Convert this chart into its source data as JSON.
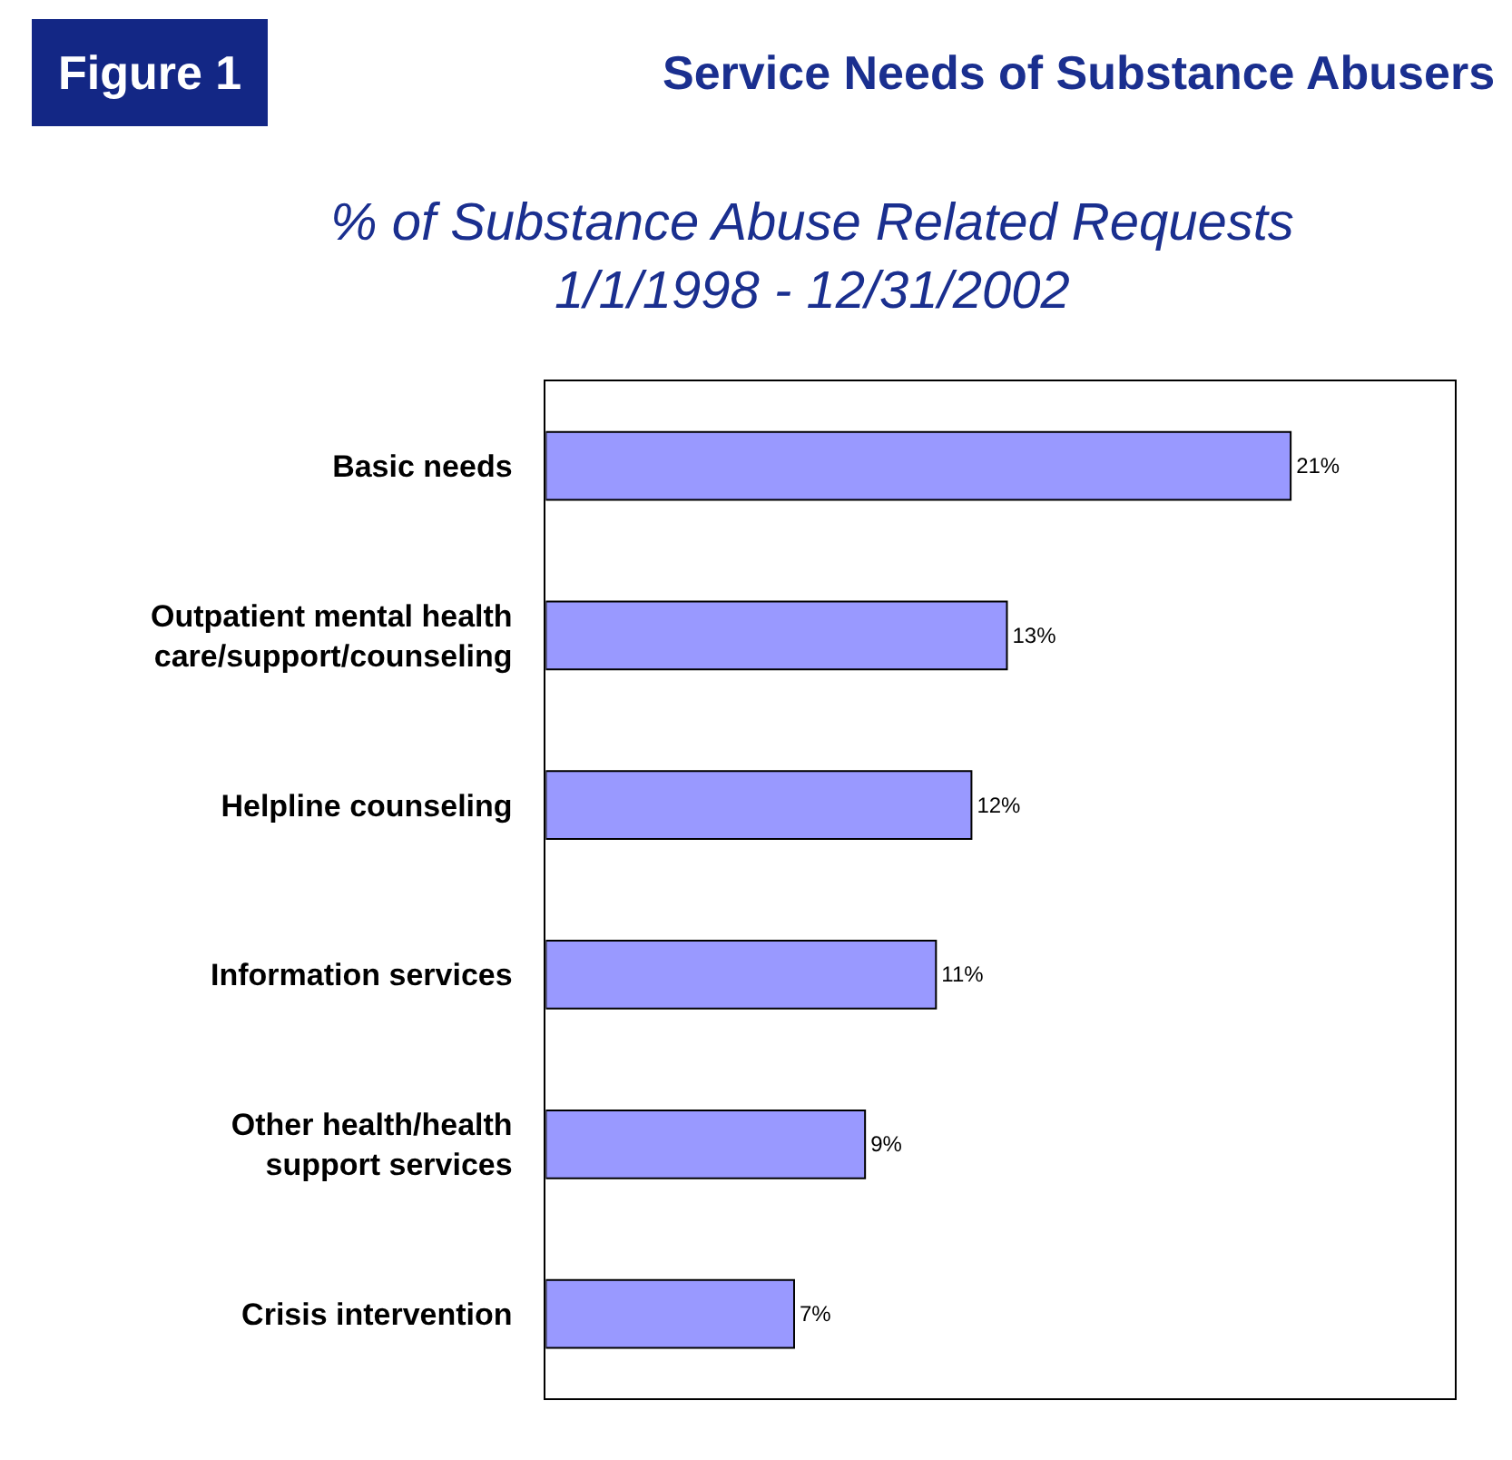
{
  "chart_data": {
    "type": "bar",
    "orientation": "horizontal",
    "title": "Service Needs of Substance Abusers",
    "subtitle": "% of Substance Abuse Related Requests\n1/1/1998 - 12/31/2002",
    "annotations": [
      "Figure 1"
    ],
    "categories": [
      "Basic needs",
      "Outpatient mental health\ncare/support/counseling",
      "Helpline counseling",
      "Information services",
      "Other health/health\nsupport services",
      "Crisis intervention"
    ],
    "values": [
      21,
      13,
      12,
      11,
      9,
      7
    ],
    "value_labels": [
      "21%",
      "13%",
      "12%",
      "11%",
      "9%",
      "7%"
    ],
    "color": "#9999ff",
    "legend": false
  }
}
